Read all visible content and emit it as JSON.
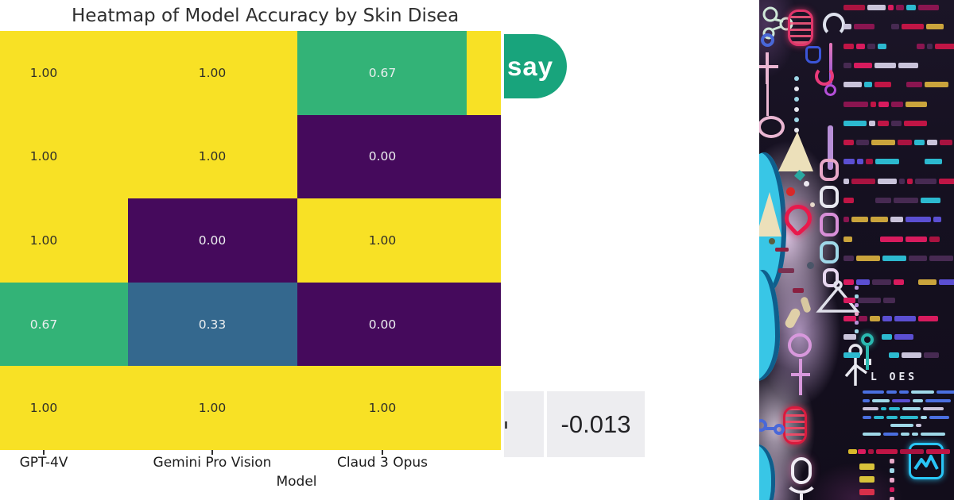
{
  "chart": {
    "title": "Heatmap of Model Accuracy by Skin Disea",
    "xlabel": "Model",
    "x_tick_labels": [
      "GPT-4V",
      "Gemini Pro Vision",
      "Claud 3 Opus"
    ]
  },
  "chart_data": {
    "type": "heatmap",
    "title": "Heatmap of Model Accuracy by Skin Disea",
    "xlabel": "Model",
    "x_categories": [
      "GPT-4V",
      "Gemini Pro Vision",
      "Claud 3 Opus"
    ],
    "y_categories": [],
    "note": "figure cropped: y-axis category labels, left edge of first column and a fourth column are cut off at the image edges",
    "values": [
      [
        1.0,
        1.0,
        0.67
      ],
      [
        1.0,
        1.0,
        0.0
      ],
      [
        1.0,
        0.0,
        1.0
      ],
      [
        0.67,
        0.33,
        0.0
      ],
      [
        1.0,
        1.0,
        1.0
      ]
    ],
    "cell_labels": [
      [
        "1.00",
        "1.00",
        "0.67"
      ],
      [
        "1.00",
        "1.00",
        "0.00"
      ],
      [
        "1.00",
        "0.00",
        "1.00"
      ],
      [
        "0.67",
        "0.33",
        "0.00"
      ],
      [
        "1.00",
        "1.00",
        "1.00"
      ]
    ],
    "col4_values_partial": [
      1,
      0,
      1,
      0,
      1
    ],
    "colormap": "viridis",
    "color_scale": {
      "1": "#f8e125",
      "0.67": "#33b377",
      "0.33": "#34688e",
      "0": "#450a5c"
    },
    "label_color_on_yellow": "#2e2e28",
    "label_color_on_dark": "#eceff0"
  },
  "badge": {
    "label": "say",
    "color": "#18a47c"
  },
  "metric": {
    "value": "-0.013",
    "box_color": "#ededf0"
  },
  "art": {
    "caption": "L OES",
    "palette_warm": [
      "#a91340",
      "#c01545",
      "#5b4fd2",
      "#2cb9cf",
      "#c9c3da",
      "#d81b5e",
      "#caa43c",
      "#472a52",
      "#8a1550"
    ],
    "palette_cool": [
      "#2cb9cf",
      "#4a6fe0",
      "#9fd8e8",
      "#5b4fd2",
      "#c9c3da"
    ],
    "accent_cyan": "#38c6e6",
    "accent_pink": "#e8a8c8",
    "accent_red": "#e8194b",
    "background": "#151020"
  }
}
